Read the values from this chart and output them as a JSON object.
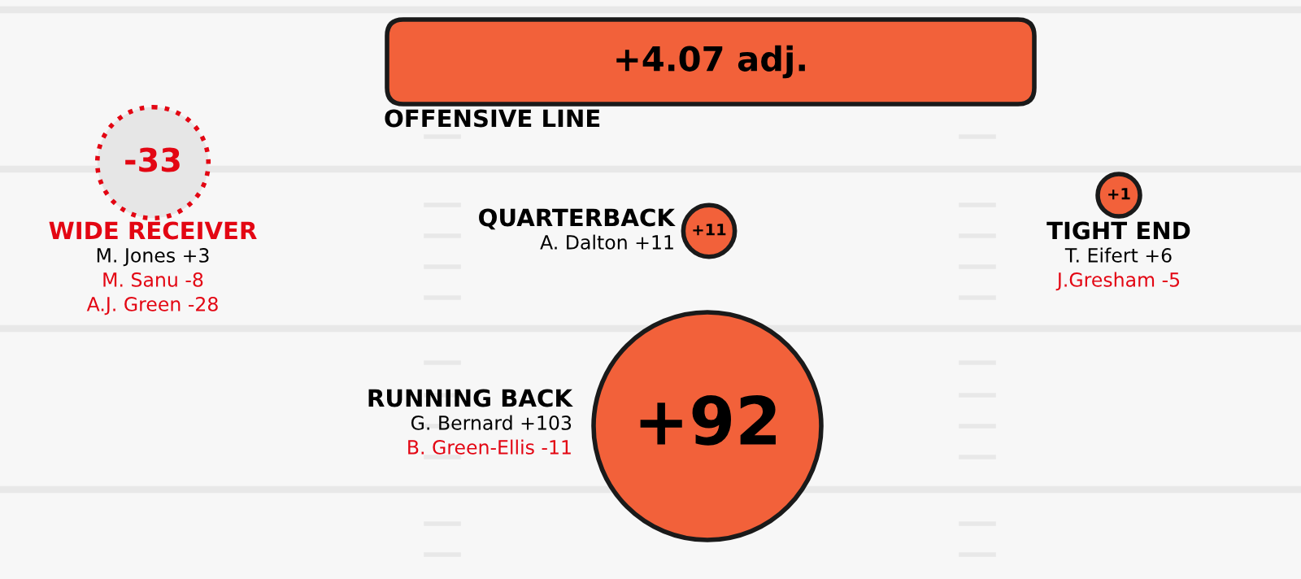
{
  "chart_data": {
    "type": "other",
    "categories": [
      "WIDE RECEIVER",
      "QUARTERBACK",
      "TIGHT END",
      "RUNNING BACK",
      "OFFENSIVE LINE"
    ],
    "values": [
      -33,
      11,
      1,
      92,
      4.07
    ],
    "value_labels": [
      "-33",
      "+11",
      "+1",
      "+92",
      "+4.07 adj."
    ],
    "colors": [
      "#e6e6e6",
      "#f2613a",
      "#f2613a",
      "#f2613a",
      "#f2613a"
    ],
    "annotations": [
      "M. Jones +3",
      "M. Sanu -8",
      "A.J. Green -28",
      "A. Dalton +11",
      "T. Eifert +6",
      "J.Gresham -5",
      "G. Bernard +103",
      "B. Green-Ellis -11"
    ]
  }
}
